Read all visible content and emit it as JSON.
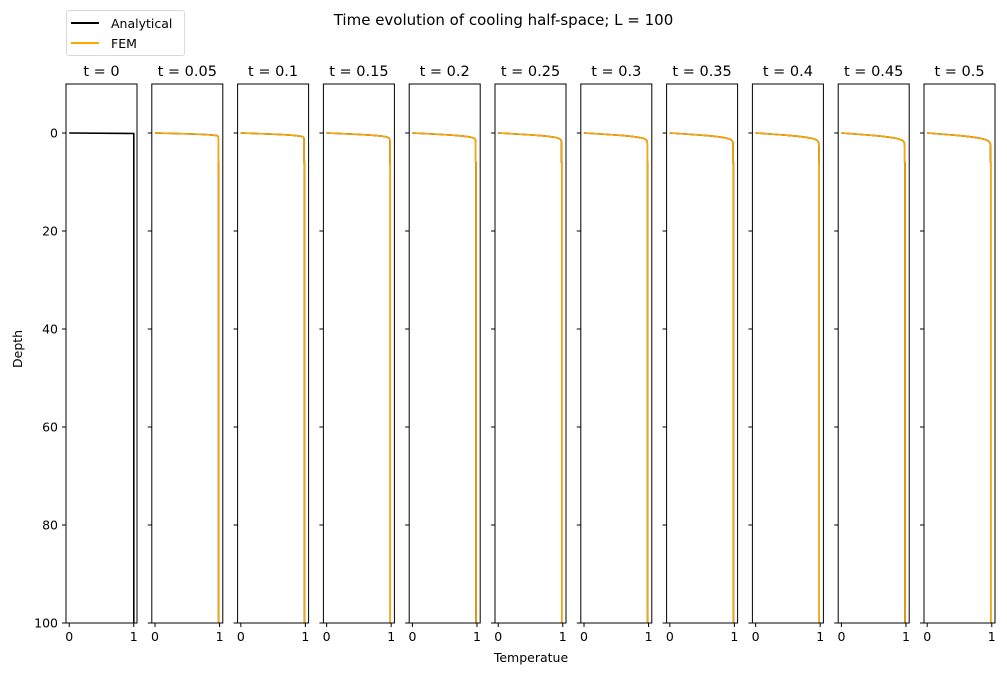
{
  "chart_data": {
    "type": "line",
    "title": "Time evolution of cooling half-space; L = 100",
    "xlabel": "Temperatue",
    "ylabel": "Depth",
    "xlim": [
      -0.05,
      1.05
    ],
    "ylim": [
      100,
      -10
    ],
    "xticks": [
      0,
      1
    ],
    "yticks": [
      0,
      20,
      40,
      60,
      80,
      100
    ],
    "legend": {
      "position": "upper left (outside, above panels)",
      "entries": [
        {
          "name": "Analytical",
          "color": "#000000"
        },
        {
          "name": "FEM",
          "color": "#FFA500"
        }
      ]
    },
    "panels": [
      {
        "title": "t = 0",
        "t": 0,
        "series": [
          "Analytical"
        ]
      },
      {
        "title": "t = 0.05",
        "t": 0.05,
        "series": [
          "Analytical",
          "FEM"
        ]
      },
      {
        "title": "t = 0.1",
        "t": 0.1,
        "series": [
          "Analytical",
          "FEM"
        ]
      },
      {
        "title": "t = 0.15",
        "t": 0.15,
        "series": [
          "Analytical",
          "FEM"
        ]
      },
      {
        "title": "t = 0.2",
        "t": 0.2,
        "series": [
          "Analytical",
          "FEM"
        ]
      },
      {
        "title": "t = 0.25",
        "t": 0.25,
        "series": [
          "Analytical",
          "FEM"
        ]
      },
      {
        "title": "t = 0.3",
        "t": 0.3,
        "series": [
          "Analytical",
          "FEM"
        ]
      },
      {
        "title": "t = 0.35",
        "t": 0.35,
        "series": [
          "Analytical",
          "FEM"
        ]
      },
      {
        "title": "t = 0.4",
        "t": 0.4,
        "series": [
          "Analytical",
          "FEM"
        ]
      },
      {
        "title": "t = 0.45",
        "t": 0.45,
        "series": [
          "Analytical",
          "FEM"
        ]
      },
      {
        "title": "t = 0.5",
        "t": 0.5,
        "series": [
          "Analytical",
          "FEM"
        ]
      }
    ],
    "profile_note": "Temperature rises from 0 at depth 0 to 1 within the top few depth units; boundary layer thickens with t (approx. T = erf(z / (2*sqrt(k*t))))",
    "boundary_layer_depth_approx": {
      "t=0.05": 0.8,
      "t=0.25": 1.8,
      "t=0.5": 2.5
    }
  }
}
